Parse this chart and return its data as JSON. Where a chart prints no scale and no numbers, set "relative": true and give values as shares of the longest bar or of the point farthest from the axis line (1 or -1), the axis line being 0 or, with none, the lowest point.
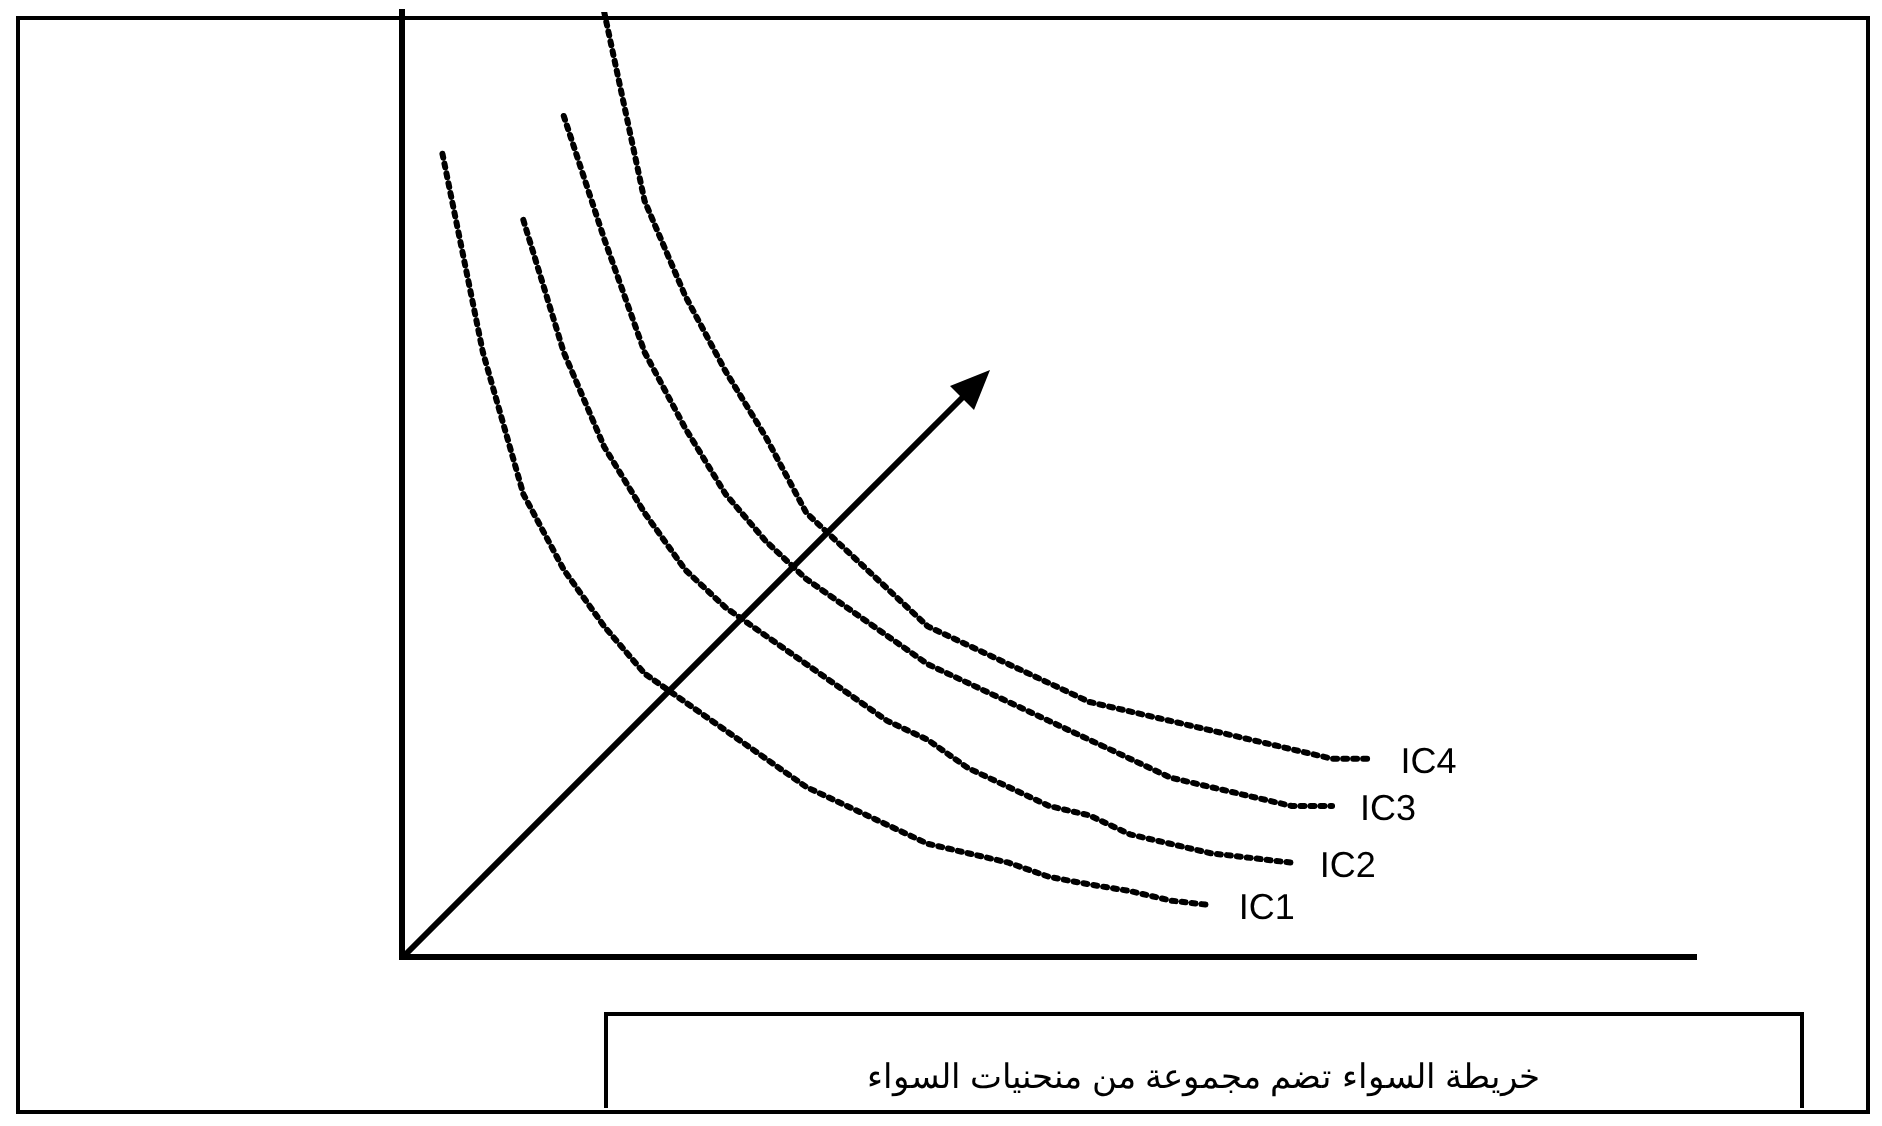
{
  "chart_data": {
    "type": "line",
    "relative": true,
    "line_style": "dotted",
    "marker": "none",
    "grid": false,
    "legend": false,
    "categories": [
      null,
      null,
      null,
      null,
      null,
      null,
      null,
      null,
      null,
      null,
      null,
      null,
      null,
      null,
      null,
      null,
      null,
      null,
      null,
      null,
      null,
      null,
      null,
      null,
      null,
      null,
      null,
      null,
      null,
      null,
      null,
      null,
      null
    ],
    "series": [
      {
        "name": "IC1",
        "color": "#000000",
        "values": [
          null,
          0.85,
          0.64,
          0.49,
          0.41,
          0.35,
          0.3,
          0.27,
          0.24,
          0.21,
          0.18,
          0.16,
          0.14,
          0.12,
          0.11,
          0.1,
          0.085,
          0.077,
          0.07,
          0.06,
          0.055,
          null,
          null,
          null,
          null,
          null,
          null,
          null,
          null,
          null,
          null,
          null,
          null
        ]
      },
      {
        "name": "IC2",
        "color": "#000000",
        "values": [
          null,
          null,
          null,
          0.78,
          0.64,
          0.54,
          0.47,
          0.41,
          0.37,
          0.34,
          0.31,
          0.28,
          0.25,
          0.23,
          0.2,
          0.18,
          0.16,
          0.15,
          0.13,
          0.12,
          0.11,
          0.105,
          0.1,
          null,
          null,
          null,
          null,
          null,
          null,
          null,
          null,
          null,
          null
        ]
      },
      {
        "name": "IC3",
        "color": "#000000",
        "values": [
          null,
          null,
          null,
          null,
          0.89,
          0.76,
          0.64,
          0.56,
          0.49,
          0.44,
          0.4,
          0.37,
          0.34,
          0.31,
          0.29,
          0.27,
          0.25,
          0.23,
          0.21,
          0.19,
          0.18,
          0.17,
          0.16,
          0.16,
          null,
          null,
          null,
          null,
          null,
          null,
          null,
          null,
          null
        ]
      },
      {
        "name": "IC4",
        "color": "#000000",
        "values": [
          null,
          null,
          null,
          null,
          null,
          1.0,
          0.8,
          0.7,
          0.62,
          0.55,
          0.47,
          0.43,
          0.39,
          0.35,
          0.33,
          0.31,
          0.29,
          0.27,
          0.26,
          0.25,
          0.24,
          0.23,
          0.22,
          0.21,
          0.21,
          null,
          null,
          null,
          null,
          null,
          null,
          null,
          null
        ]
      }
    ],
    "annotations": [
      "خريطة السواء تضم مجموعة من منحنيات السواء"
    ]
  }
}
